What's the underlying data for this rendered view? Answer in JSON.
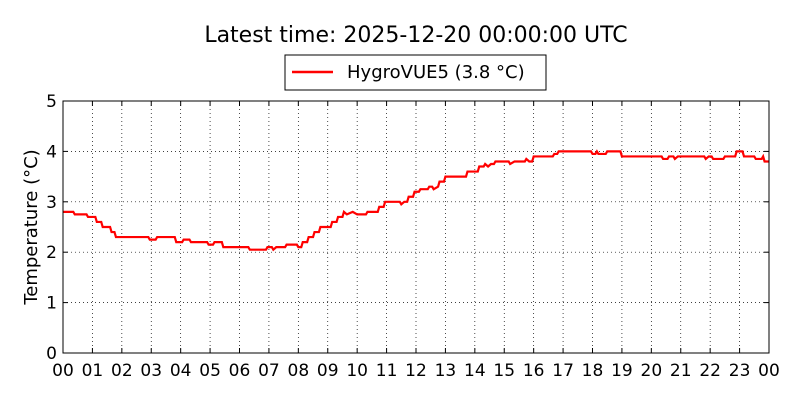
{
  "chart_data": {
    "type": "line",
    "title": "Latest time: 2025-12-20 00:00:00 UTC",
    "xlabel": "",
    "ylabel": "Temperature (°C)",
    "x_tick_labels": [
      "00",
      "01",
      "02",
      "03",
      "04",
      "05",
      "06",
      "07",
      "08",
      "09",
      "10",
      "11",
      "12",
      "13",
      "14",
      "15",
      "16",
      "17",
      "18",
      "19",
      "20",
      "21",
      "22",
      "23",
      "00"
    ],
    "x_unit": "hour",
    "xlim": [
      0,
      24
    ],
    "ylim": [
      0,
      5
    ],
    "y_ticks": [
      0,
      1,
      2,
      3,
      4,
      5
    ],
    "grid": true,
    "legend_position": "top-center",
    "series": [
      {
        "name": "HygroVUE5 (3.8 °C)",
        "color": "#ff0000",
        "points": [
          [
            0.0,
            2.8
          ],
          [
            0.35,
            2.8
          ],
          [
            0.4,
            2.75
          ],
          [
            0.8,
            2.75
          ],
          [
            0.85,
            2.7
          ],
          [
            1.1,
            2.7
          ],
          [
            1.15,
            2.6
          ],
          [
            1.3,
            2.6
          ],
          [
            1.35,
            2.5
          ],
          [
            1.6,
            2.5
          ],
          [
            1.65,
            2.4
          ],
          [
            1.75,
            2.4
          ],
          [
            1.8,
            2.3
          ],
          [
            2.9,
            2.3
          ],
          [
            2.95,
            2.25
          ],
          [
            3.15,
            2.25
          ],
          [
            3.2,
            2.3
          ],
          [
            3.8,
            2.3
          ],
          [
            3.85,
            2.2
          ],
          [
            4.05,
            2.2
          ],
          [
            4.1,
            2.25
          ],
          [
            4.3,
            2.25
          ],
          [
            4.35,
            2.2
          ],
          [
            4.9,
            2.2
          ],
          [
            4.95,
            2.15
          ],
          [
            5.1,
            2.15
          ],
          [
            5.15,
            2.2
          ],
          [
            5.4,
            2.2
          ],
          [
            5.45,
            2.1
          ],
          [
            6.3,
            2.1
          ],
          [
            6.35,
            2.05
          ],
          [
            6.9,
            2.05
          ],
          [
            6.95,
            2.1
          ],
          [
            7.1,
            2.1
          ],
          [
            7.15,
            2.05
          ],
          [
            7.25,
            2.1
          ],
          [
            7.55,
            2.1
          ],
          [
            7.6,
            2.15
          ],
          [
            7.95,
            2.15
          ],
          [
            8.0,
            2.1
          ],
          [
            8.1,
            2.1
          ],
          [
            8.15,
            2.2
          ],
          [
            8.3,
            2.2
          ],
          [
            8.35,
            2.3
          ],
          [
            8.5,
            2.3
          ],
          [
            8.55,
            2.4
          ],
          [
            8.7,
            2.4
          ],
          [
            8.75,
            2.5
          ],
          [
            9.1,
            2.5
          ],
          [
            9.15,
            2.6
          ],
          [
            9.3,
            2.6
          ],
          [
            9.35,
            2.7
          ],
          [
            9.5,
            2.7
          ],
          [
            9.55,
            2.8
          ],
          [
            9.65,
            2.75
          ],
          [
            9.85,
            2.8
          ],
          [
            10.0,
            2.75
          ],
          [
            10.3,
            2.75
          ],
          [
            10.35,
            2.8
          ],
          [
            10.7,
            2.8
          ],
          [
            10.75,
            2.9
          ],
          [
            10.9,
            2.9
          ],
          [
            10.95,
            3.0
          ],
          [
            11.45,
            3.0
          ],
          [
            11.5,
            2.95
          ],
          [
            11.6,
            3.0
          ],
          [
            11.7,
            3.0
          ],
          [
            11.75,
            3.1
          ],
          [
            11.9,
            3.1
          ],
          [
            11.95,
            3.2
          ],
          [
            12.1,
            3.2
          ],
          [
            12.15,
            3.25
          ],
          [
            12.4,
            3.25
          ],
          [
            12.45,
            3.3
          ],
          [
            12.55,
            3.3
          ],
          [
            12.6,
            3.25
          ],
          [
            12.75,
            3.3
          ],
          [
            12.8,
            3.4
          ],
          [
            12.95,
            3.4
          ],
          [
            13.0,
            3.5
          ],
          [
            13.7,
            3.5
          ],
          [
            13.75,
            3.6
          ],
          [
            14.1,
            3.6
          ],
          [
            14.15,
            3.7
          ],
          [
            14.3,
            3.7
          ],
          [
            14.35,
            3.75
          ],
          [
            14.45,
            3.7
          ],
          [
            14.55,
            3.75
          ],
          [
            14.65,
            3.75
          ],
          [
            14.7,
            3.8
          ],
          [
            15.15,
            3.8
          ],
          [
            15.2,
            3.75
          ],
          [
            15.35,
            3.8
          ],
          [
            15.7,
            3.8
          ],
          [
            15.75,
            3.85
          ],
          [
            15.85,
            3.8
          ],
          [
            15.95,
            3.8
          ],
          [
            16.0,
            3.9
          ],
          [
            16.65,
            3.9
          ],
          [
            16.7,
            3.95
          ],
          [
            16.8,
            3.95
          ],
          [
            16.85,
            4.0
          ],
          [
            17.95,
            4.0
          ],
          [
            18.0,
            3.95
          ],
          [
            18.1,
            3.95
          ],
          [
            18.15,
            4.0
          ],
          [
            18.2,
            3.95
          ],
          [
            18.45,
            3.95
          ],
          [
            18.5,
            4.0
          ],
          [
            18.95,
            4.0
          ],
          [
            19.0,
            3.9
          ],
          [
            20.35,
            3.9
          ],
          [
            20.4,
            3.85
          ],
          [
            20.55,
            3.85
          ],
          [
            20.6,
            3.9
          ],
          [
            20.75,
            3.9
          ],
          [
            20.8,
            3.85
          ],
          [
            20.9,
            3.9
          ],
          [
            21.8,
            3.9
          ],
          [
            21.85,
            3.85
          ],
          [
            21.95,
            3.9
          ],
          [
            22.05,
            3.9
          ],
          [
            22.1,
            3.85
          ],
          [
            22.45,
            3.85
          ],
          [
            22.5,
            3.9
          ],
          [
            22.85,
            3.9
          ],
          [
            22.9,
            4.0
          ],
          [
            23.1,
            4.0
          ],
          [
            23.15,
            3.9
          ],
          [
            23.5,
            3.9
          ],
          [
            23.55,
            3.85
          ],
          [
            23.75,
            3.85
          ],
          [
            23.8,
            3.9
          ],
          [
            23.85,
            3.8
          ],
          [
            24.0,
            3.8
          ]
        ]
      }
    ]
  }
}
